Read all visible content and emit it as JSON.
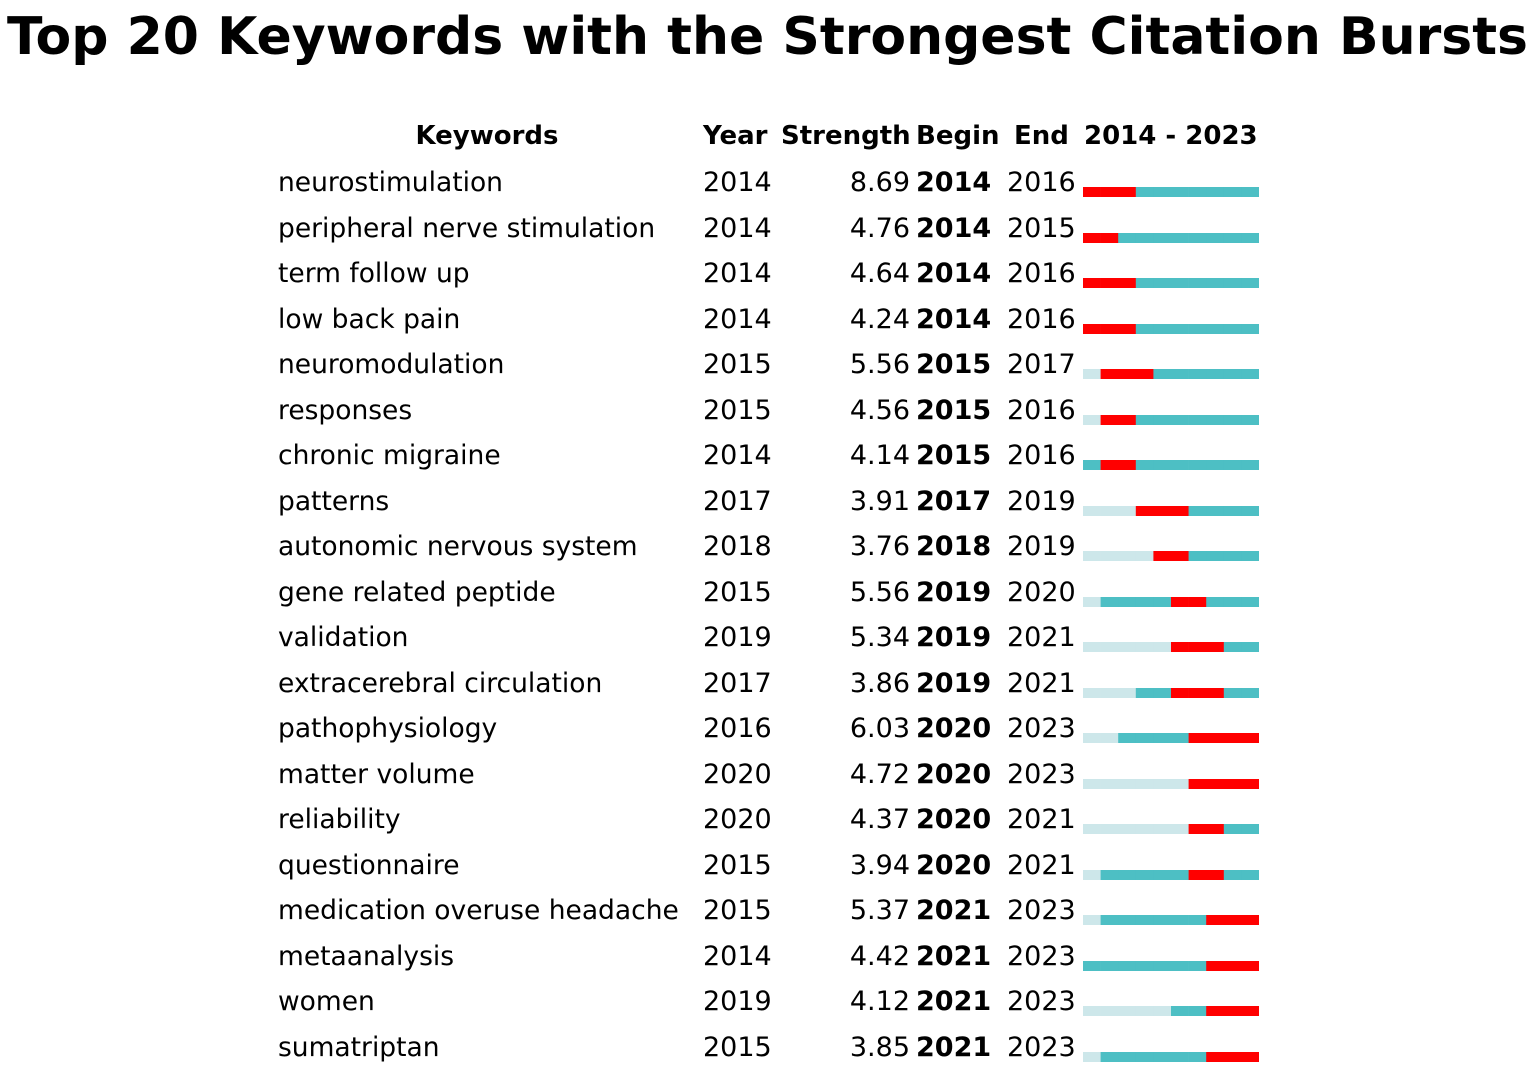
{
  "title": "Top 20 Keywords with the Strongest Citation Bursts",
  "columns": {
    "keywords": "Keywords",
    "year": "Year",
    "strength": "Strength",
    "begin": "Begin",
    "end": "End",
    "range": "2014 - 2023"
  },
  "colors": {
    "burst": "#ff0000",
    "active": "#4dbfc4",
    "inactive": "#cde7ea"
  },
  "chart_data": {
    "type": "table",
    "title": "Top 20 Keywords with the Strongest Citation Bursts",
    "range_start": 2014,
    "range_end": 2023,
    "rows": [
      {
        "keyword": "neurostimulation",
        "year": "2014",
        "strength": "8.69",
        "begin": "2014",
        "end": "2016"
      },
      {
        "keyword": "peripheral nerve stimulation",
        "year": "2014",
        "strength": "4.76",
        "begin": "2014",
        "end": "2015"
      },
      {
        "keyword": "term follow up",
        "year": "2014",
        "strength": "4.64",
        "begin": "2014",
        "end": "2016"
      },
      {
        "keyword": "low back pain",
        "year": "2014",
        "strength": "4.24",
        "begin": "2014",
        "end": "2016"
      },
      {
        "keyword": "neuromodulation",
        "year": "2015",
        "strength": "5.56",
        "begin": "2015",
        "end": "2017"
      },
      {
        "keyword": "responses",
        "year": "2015",
        "strength": "4.56",
        "begin": "2015",
        "end": "2016"
      },
      {
        "keyword": "chronic migraine",
        "year": "2014",
        "strength": "4.14",
        "begin": "2015",
        "end": "2016"
      },
      {
        "keyword": "patterns",
        "year": "2017",
        "strength": "3.91",
        "begin": "2017",
        "end": "2019"
      },
      {
        "keyword": "autonomic nervous system",
        "year": "2018",
        "strength": "3.76",
        "begin": "2018",
        "end": "2019"
      },
      {
        "keyword": "gene related peptide",
        "year": "2015",
        "strength": "5.56",
        "begin": "2019",
        "end": "2020"
      },
      {
        "keyword": "validation",
        "year": "2019",
        "strength": "5.34",
        "begin": "2019",
        "end": "2021"
      },
      {
        "keyword": "extracerebral circulation",
        "year": "2017",
        "strength": "3.86",
        "begin": "2019",
        "end": "2021"
      },
      {
        "keyword": "pathophysiology",
        "year": "2016",
        "strength": "6.03",
        "begin": "2020",
        "end": "2023"
      },
      {
        "keyword": "matter volume",
        "year": "2020",
        "strength": "4.72",
        "begin": "2020",
        "end": "2023"
      },
      {
        "keyword": "reliability",
        "year": "2020",
        "strength": "4.37",
        "begin": "2020",
        "end": "2021"
      },
      {
        "keyword": "questionnaire",
        "year": "2015",
        "strength": "3.94",
        "begin": "2020",
        "end": "2021"
      },
      {
        "keyword": "medication overuse headache",
        "year": "2015",
        "strength": "5.37",
        "begin": "2021",
        "end": "2023"
      },
      {
        "keyword": "metaanalysis",
        "year": "2014",
        "strength": "4.42",
        "begin": "2021",
        "end": "2023"
      },
      {
        "keyword": "women",
        "year": "2019",
        "strength": "4.12",
        "begin": "2021",
        "end": "2023"
      },
      {
        "keyword": "sumatriptan",
        "year": "2015",
        "strength": "3.85",
        "begin": "2021",
        "end": "2023"
      }
    ]
  }
}
